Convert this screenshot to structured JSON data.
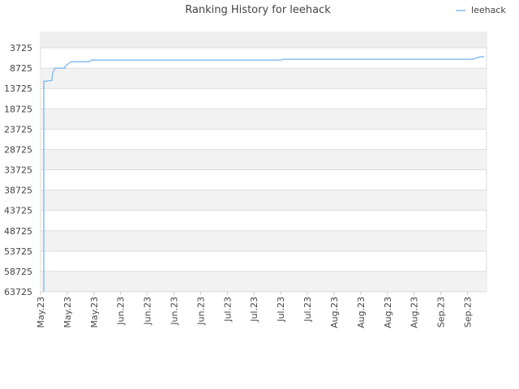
{
  "chart_data": {
    "type": "line",
    "title": "Ranking History for leehack",
    "x": [
      0.85,
      0.85,
      1.3,
      3,
      3,
      3.2,
      3.8,
      6.4,
      6.4,
      7.7,
      8.1,
      12.8,
      13.4,
      63.2,
      63.6,
      113.4,
      114,
      115.3,
      116.4
    ],
    "series": [
      {
        "name": "leehack",
        "color": "#88bdf0",
        "values": [
          63725,
          11925,
          11925,
          11725,
          11525,
          9925,
          8725,
          8725,
          8325,
          7325,
          7125,
          7125,
          6725,
          6725,
          6525,
          6525,
          6325,
          5925,
          5925
        ]
      }
    ],
    "xlim": [
      0,
      117
    ],
    "xticks": [
      {
        "value": 0,
        "label": "May.23"
      },
      {
        "value": 7,
        "label": "May.23"
      },
      {
        "value": 14,
        "label": "May.23"
      },
      {
        "value": 21,
        "label": "Jun.23"
      },
      {
        "value": 28,
        "label": "Jun.23"
      },
      {
        "value": 35,
        "label": "Jun.23"
      },
      {
        "value": 42,
        "label": "Jun.23"
      },
      {
        "value": 49,
        "label": "Jul.23"
      },
      {
        "value": 56,
        "label": "Jul.23"
      },
      {
        "value": 63,
        "label": "Jul.23"
      },
      {
        "value": 70,
        "label": "Jul.23"
      },
      {
        "value": 77,
        "label": "Aug.23"
      },
      {
        "value": 84,
        "label": "Aug.23"
      },
      {
        "value": 91,
        "label": "Aug.23"
      },
      {
        "value": 98,
        "label": "Aug.23"
      },
      {
        "value": 105,
        "label": "Sep.23"
      },
      {
        "value": 112,
        "label": "Sep.23"
      }
    ],
    "ylim": [
      63725,
      -75
    ],
    "yticks": [
      3725,
      8725,
      13725,
      18725,
      23725,
      28725,
      33725,
      38725,
      43725,
      48725,
      53725,
      58725,
      63725
    ],
    "grid": true
  }
}
